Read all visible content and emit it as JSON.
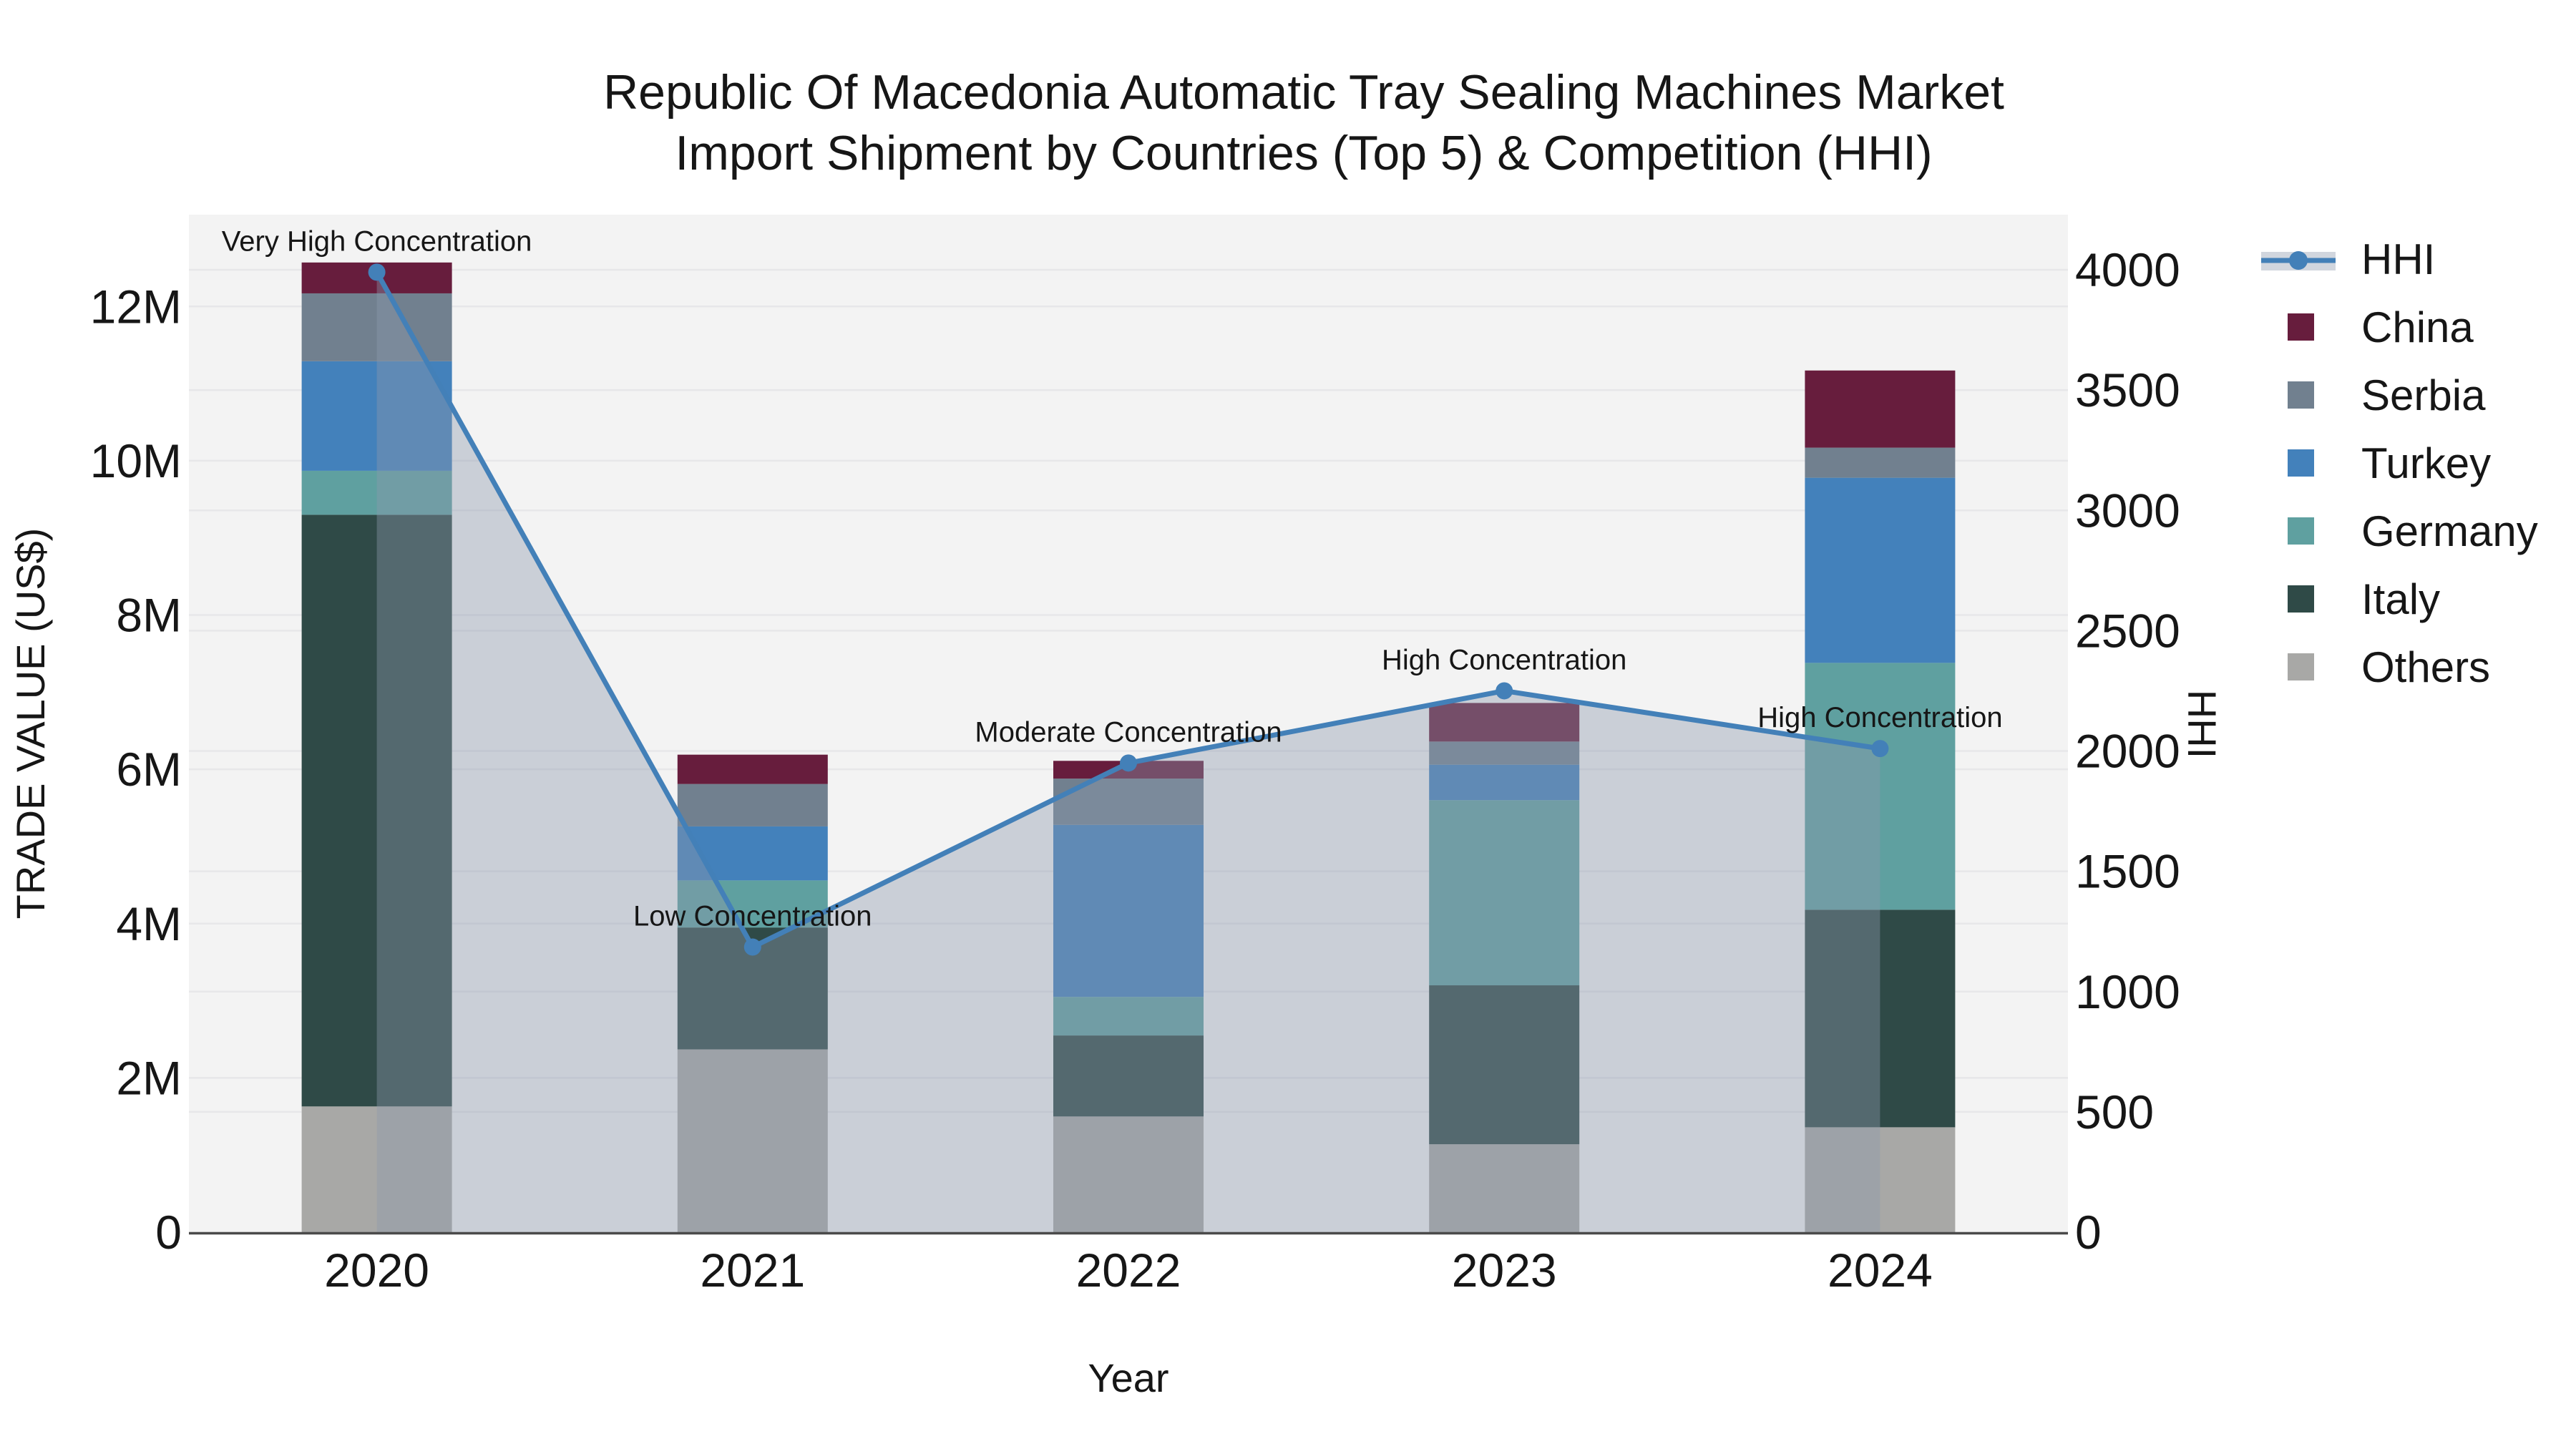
{
  "title": {
    "line1": "Republic Of Macedonia Automatic Tray Sealing Machines Market",
    "line2": "Import Shipment by Countries (Top 5) & Competition (HHI)"
  },
  "chart_data": {
    "type": "combo_stacked_bar_plus_line",
    "categories": [
      "2020",
      "2021",
      "2022",
      "2023",
      "2024"
    ],
    "xlabel": "Year",
    "ylabel_left": "TRADE VALUE (US$)",
    "ylabel_right": "HHI",
    "y_left_ticks": [
      {
        "value": 0,
        "label": "0"
      },
      {
        "value": 2,
        "label": "2M"
      },
      {
        "value": 4,
        "label": "4M"
      },
      {
        "value": 6,
        "label": "6M"
      },
      {
        "value": 8,
        "label": "8M"
      },
      {
        "value": 10,
        "label": "10M"
      },
      {
        "value": 12,
        "label": "12M"
      }
    ],
    "y_left_range_M": [
      0,
      13.19
    ],
    "y_right_ticks": [
      {
        "value": 0,
        "label": "0"
      },
      {
        "value": 500,
        "label": "500"
      },
      {
        "value": 1000,
        "label": "1000"
      },
      {
        "value": 1500,
        "label": "1500"
      },
      {
        "value": 2000,
        "label": "2000"
      },
      {
        "value": 2500,
        "label": "2500"
      },
      {
        "value": 3000,
        "label": "3000"
      },
      {
        "value": 3500,
        "label": "3500"
      },
      {
        "value": 4000,
        "label": "4000"
      }
    ],
    "y_right_range": [
      0,
      4229
    ],
    "series_stack_bottom_to_top": [
      {
        "name": "Others",
        "color": "#a8a8a6",
        "values_M": [
          1.63,
          2.37,
          1.5,
          1.14,
          1.36
        ]
      },
      {
        "name": "Italy",
        "color": "#2f4a47",
        "values_M": [
          7.67,
          1.58,
          1.05,
          2.06,
          2.82
        ]
      },
      {
        "name": "Germany",
        "color": "#5fa0a0",
        "values_M": [
          0.57,
          0.61,
          0.5,
          2.4,
          3.2
        ]
      },
      {
        "name": "Turkey",
        "color": "#4381bb",
        "values_M": [
          1.42,
          0.7,
          2.23,
          0.46,
          2.4
        ]
      },
      {
        "name": "Serbia",
        "color": "#71808f",
        "values_M": [
          0.88,
          0.55,
          0.6,
          0.3,
          0.39
        ]
      },
      {
        "name": "China",
        "color": "#671d3d",
        "values_M": [
          0.4,
          0.38,
          0.23,
          0.5,
          1.0
        ]
      }
    ],
    "bar_totals_M": [
      12.57,
      6.19,
      6.11,
      6.86,
      11.17
    ],
    "hhi": {
      "name": "HHI",
      "line_color": "#4380b8",
      "area_fill_color": "rgba(139,152,172,0.40)",
      "values": [
        3990,
        1185,
        1950,
        2250,
        2010
      ]
    },
    "annotations": [
      "Very High Concentration",
      "Low Concentration",
      "Moderate Concentration",
      "High Concentration",
      "High Concentration"
    ],
    "legend_order_top_to_bottom": [
      "HHI",
      "China",
      "Serbia",
      "Turkey",
      "Germany",
      "Italy",
      "Others"
    ],
    "grid": "on",
    "legend_position": "right-top-outside"
  },
  "colors": {
    "figure_bg": "#ffffff",
    "plot_bg": "#f3f3f3",
    "gridline": "#e7e7e9",
    "axis_line": "#4a4a4a",
    "text": "#161616",
    "title_text": "#1c1c1c"
  }
}
